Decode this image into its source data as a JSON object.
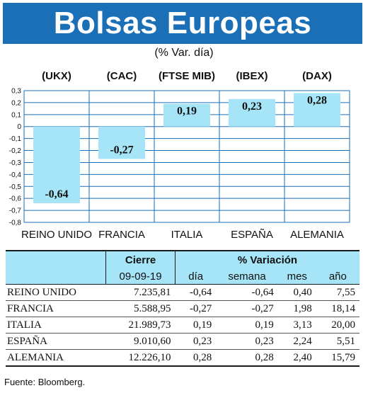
{
  "header": {
    "title": "Bolsas Europeas",
    "subtitle": "(% Var. día)"
  },
  "chart_data": {
    "type": "bar",
    "categories": [
      "REINO UNIDO",
      "FRANCIA",
      "ITALIA",
      "ESPAÑA",
      "ALEMANIA"
    ],
    "codes": [
      "(UKX)",
      "(CAC)",
      "(FTSE MIB)",
      "(IBEX)",
      "(DAX)"
    ],
    "values": [
      -0.64,
      -0.27,
      0.19,
      0.23,
      0.28
    ],
    "value_labels": [
      "-0,64",
      "-0,27",
      "0,19",
      "0,23",
      "0,28"
    ],
    "yticks": [
      0.3,
      0.2,
      0.1,
      0,
      -0.1,
      -0.2,
      -0.3,
      -0.4,
      -0.5,
      -0.6,
      -0.7,
      -0.8
    ],
    "ytick_labels": [
      "0,3",
      "0,2",
      "0,1",
      "0",
      "-0,1",
      "-0,2",
      "-0,3",
      "-0,4",
      "-0,5",
      "-0,6",
      "-0,7",
      "-0,8"
    ],
    "ylim": [
      -0.8,
      0.3
    ],
    "grid": true,
    "bar_color": "#a6e4f7",
    "grid_color": "#1b6fb6"
  },
  "table": {
    "header_cierre": "Cierre",
    "header_variacion": "% Variación",
    "date": "09-09-19",
    "cols": [
      "día",
      "semana",
      "mes",
      "año"
    ],
    "rows": [
      {
        "name": "REINO UNIDO",
        "cierre": "7.235,81",
        "dia": "-0,64",
        "semana": "-0,64",
        "mes": "0,40",
        "anio": "7,55"
      },
      {
        "name": "FRANCIA",
        "cierre": "5.588,95",
        "dia": "-0,27",
        "semana": "-0,27",
        "mes": "1,98",
        "anio": "18,14"
      },
      {
        "name": "ITALIA",
        "cierre": "21.989,73",
        "dia": "0,19",
        "semana": "0,19",
        "mes": "3,13",
        "anio": "20,00"
      },
      {
        "name": "ESPAÑA",
        "cierre": "9.010,60",
        "dia": "0,23",
        "semana": "0,23",
        "mes": "2,24",
        "anio": "5,51"
      },
      {
        "name": "ALEMANIA",
        "cierre": "12.226,10",
        "dia": "0,28",
        "semana": "0,28",
        "mes": "2,40",
        "anio": "15,79"
      }
    ]
  },
  "footer": {
    "source": "Fuente: Bloomberg."
  }
}
